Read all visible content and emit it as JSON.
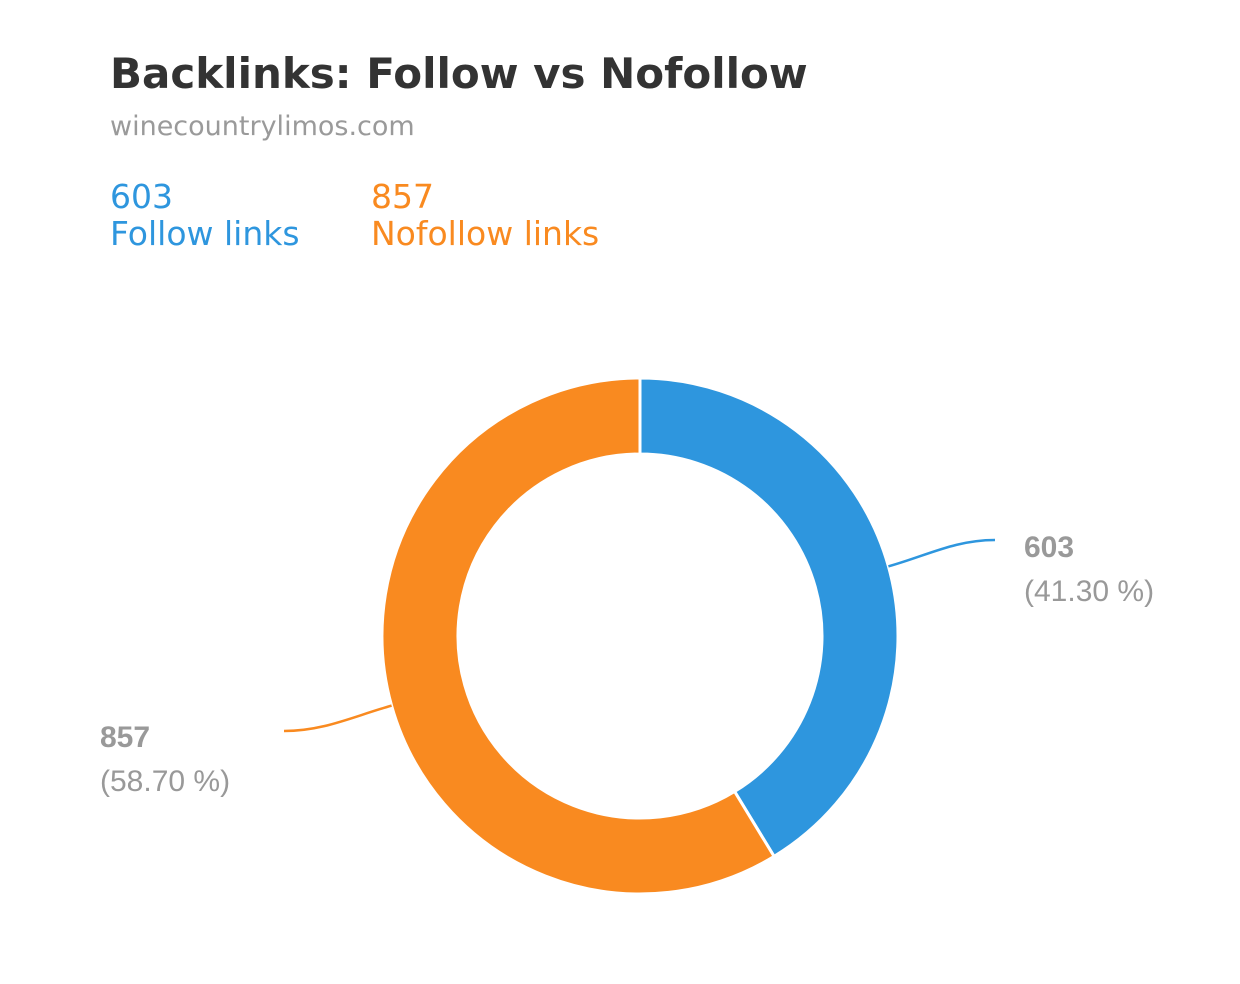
{
  "title": "Backlinks: Follow vs Nofollow",
  "subtitle": "winecountrylimos.com",
  "summary": {
    "follow": {
      "value": "603",
      "label": "Follow links"
    },
    "nofollow": {
      "value": "857",
      "label": "Nofollow links"
    }
  },
  "chart_data": {
    "type": "pie",
    "variant": "donut",
    "title": "Backlinks: Follow vs Nofollow",
    "subtitle": "winecountrylimos.com",
    "slices": [
      {
        "name": "Follow links",
        "value": 603,
        "percent": 41.3,
        "value_label": "603",
        "percent_label": "(41.30 %)",
        "color": "#2e96de"
      },
      {
        "name": "Nofollow links",
        "value": 857,
        "percent": 58.7,
        "value_label": "857",
        "percent_label": "(58.70 %)",
        "color": "#f98a20"
      }
    ],
    "start_angle": "12 o'clock",
    "direction": "clockwise"
  }
}
